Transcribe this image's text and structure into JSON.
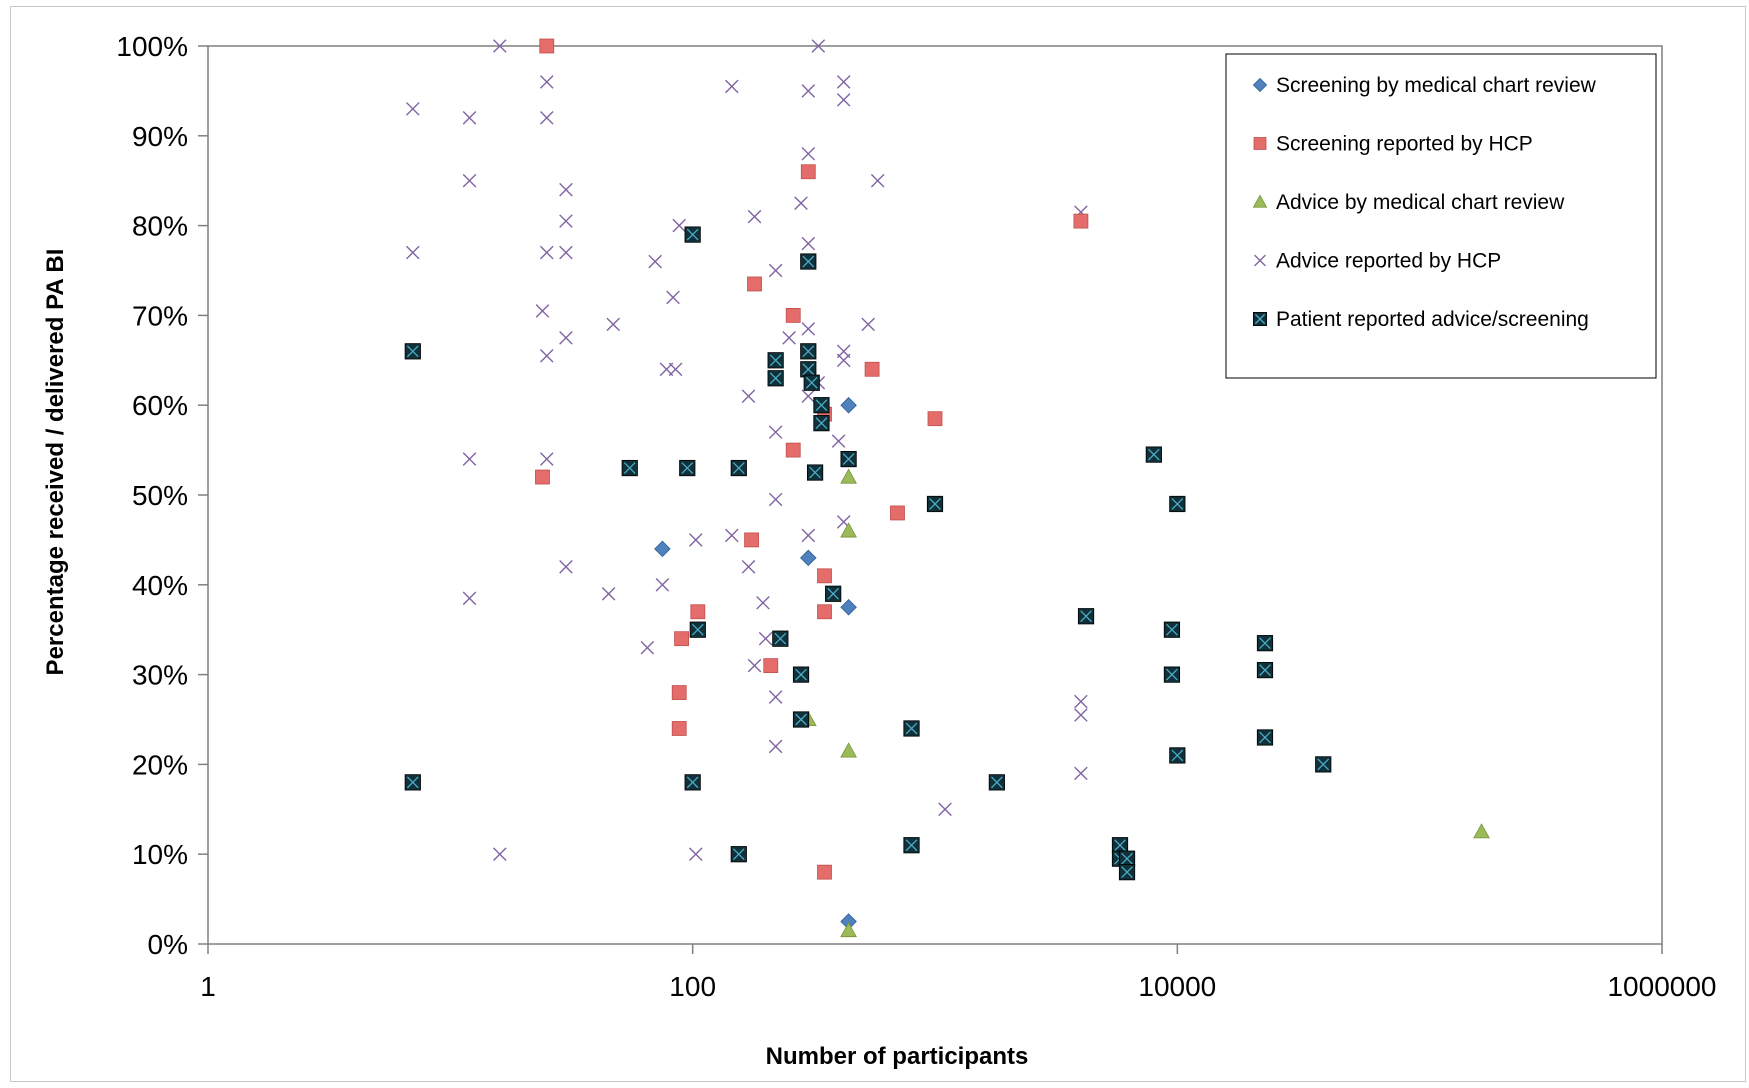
{
  "chart_data": {
    "type": "scatter",
    "title": "",
    "xlabel": "Number of participants",
    "ylabel": "Percentage received / delivered PA BI",
    "x_scale": "log",
    "xlim": [
      1,
      1000000
    ],
    "ylim": [
      0,
      100
    ],
    "x_ticks": [
      1,
      100,
      10000,
      1000000
    ],
    "x_tick_labels": [
      "1",
      "100",
      "10000",
      "1000000"
    ],
    "y_ticks": [
      0,
      10,
      20,
      30,
      40,
      50,
      60,
      70,
      80,
      90,
      100
    ],
    "y_tick_labels": [
      "0%",
      "10%",
      "20%",
      "30%",
      "40%",
      "50%",
      "60%",
      "70%",
      "80%",
      "90%",
      "100%"
    ],
    "grid": false,
    "legend_position": "top-right",
    "series": [
      {
        "name": "Screening by medical chart review",
        "marker": "diamond",
        "color": "#4f81bd",
        "points": [
          [
            75,
            44
          ],
          [
            300,
            43
          ],
          [
            440,
            60
          ],
          [
            440,
            37.5
          ],
          [
            440,
            2.5
          ]
        ]
      },
      {
        "name": "Screening reported by HCP",
        "marker": "square",
        "color": "#e46c6a",
        "points": [
          [
            25,
            100
          ],
          [
            24,
            52
          ],
          [
            90,
            34
          ],
          [
            105,
            37
          ],
          [
            88,
            28
          ],
          [
            88,
            24
          ],
          [
            180,
            73.5
          ],
          [
            260,
            70
          ],
          [
            300,
            86
          ],
          [
            175,
            45
          ],
          [
            210,
            31
          ],
          [
            260,
            55
          ],
          [
            350,
            59
          ],
          [
            350,
            41
          ],
          [
            350,
            37
          ],
          [
            350,
            8
          ],
          [
            550,
            64
          ],
          [
            700,
            48
          ],
          [
            1000,
            58.5
          ],
          [
            4000,
            80.5
          ]
        ]
      },
      {
        "name": "Advice by medical chart review",
        "marker": "triangle",
        "color": "#9bbb59",
        "points": [
          [
            440,
            52
          ],
          [
            440,
            46
          ],
          [
            440,
            21.5
          ],
          [
            300,
            25
          ],
          [
            440,
            1.5
          ],
          [
            180000,
            12.5
          ]
        ]
      },
      {
        "name": "Advice reported by HCP",
        "marker": "x",
        "color": "#8064a2",
        "points": [
          [
            7,
            93
          ],
          [
            7,
            77
          ],
          [
            12,
            92
          ],
          [
            12,
            85
          ],
          [
            12,
            54
          ],
          [
            12,
            38.5
          ],
          [
            16,
            100
          ],
          [
            16,
            10
          ],
          [
            25,
            96
          ],
          [
            25,
            92
          ],
          [
            25,
            77
          ],
          [
            25,
            65.5
          ],
          [
            25,
            54
          ],
          [
            24,
            70.5
          ],
          [
            30,
            84
          ],
          [
            30,
            80.5
          ],
          [
            30,
            77
          ],
          [
            30,
            67.5
          ],
          [
            30,
            42
          ],
          [
            45,
            39
          ],
          [
            47,
            69
          ],
          [
            65,
            33
          ],
          [
            70,
            76
          ],
          [
            75,
            40
          ],
          [
            78,
            64
          ],
          [
            83,
            72
          ],
          [
            85,
            64
          ],
          [
            88,
            80
          ],
          [
            103,
            45
          ],
          [
            103,
            10
          ],
          [
            145,
            95.5
          ],
          [
            145,
            45.5
          ],
          [
            170,
            61
          ],
          [
            170,
            42
          ],
          [
            180,
            81
          ],
          [
            180,
            31
          ],
          [
            195,
            38
          ],
          [
            200,
            34
          ],
          [
            220,
            75
          ],
          [
            220,
            57
          ],
          [
            220,
            49.5
          ],
          [
            220,
            27.5
          ],
          [
            220,
            22
          ],
          [
            250,
            67.5
          ],
          [
            280,
            82.5
          ],
          [
            300,
            95
          ],
          [
            300,
            88
          ],
          [
            300,
            78
          ],
          [
            300,
            68.5
          ],
          [
            300,
            45.5
          ],
          [
            300,
            61
          ],
          [
            330,
            100
          ],
          [
            330,
            62.5
          ],
          [
            420,
            96
          ],
          [
            420,
            94
          ],
          [
            420,
            66
          ],
          [
            420,
            65
          ],
          [
            420,
            47
          ],
          [
            400,
            56
          ],
          [
            530,
            69
          ],
          [
            580,
            85
          ],
          [
            1100,
            15
          ],
          [
            4000,
            81.5
          ],
          [
            4000,
            27
          ],
          [
            4000,
            25.5
          ],
          [
            4000,
            19
          ]
        ]
      },
      {
        "name": "Patient reported advice/screening",
        "marker": "square-x",
        "color": "#10303a",
        "points": [
          [
            7,
            66
          ],
          [
            7,
            18
          ],
          [
            55,
            53
          ],
          [
            95,
            53
          ],
          [
            100,
            79
          ],
          [
            100,
            18
          ],
          [
            105,
            35
          ],
          [
            155,
            53
          ],
          [
            155,
            10
          ],
          [
            220,
            65
          ],
          [
            220,
            63
          ],
          [
            230,
            34
          ],
          [
            280,
            30
          ],
          [
            280,
            25
          ],
          [
            300,
            76
          ],
          [
            300,
            66
          ],
          [
            300,
            64
          ],
          [
            310,
            62.5
          ],
          [
            320,
            52.5
          ],
          [
            340,
            60
          ],
          [
            340,
            58
          ],
          [
            380,
            39
          ],
          [
            440,
            54
          ],
          [
            800,
            11
          ],
          [
            800,
            24
          ],
          [
            1000,
            49
          ],
          [
            1800,
            18
          ],
          [
            4200,
            36.5
          ],
          [
            5800,
            11
          ],
          [
            5800,
            9.5
          ],
          [
            6200,
            9.5
          ],
          [
            6200,
            8
          ],
          [
            8000,
            54.5
          ],
          [
            9500,
            35
          ],
          [
            9500,
            30
          ],
          [
            10000,
            49
          ],
          [
            10000,
            21
          ],
          [
            23000,
            33.5
          ],
          [
            23000,
            30.5
          ],
          [
            23000,
            23
          ],
          [
            40000,
            20
          ]
        ]
      }
    ]
  }
}
